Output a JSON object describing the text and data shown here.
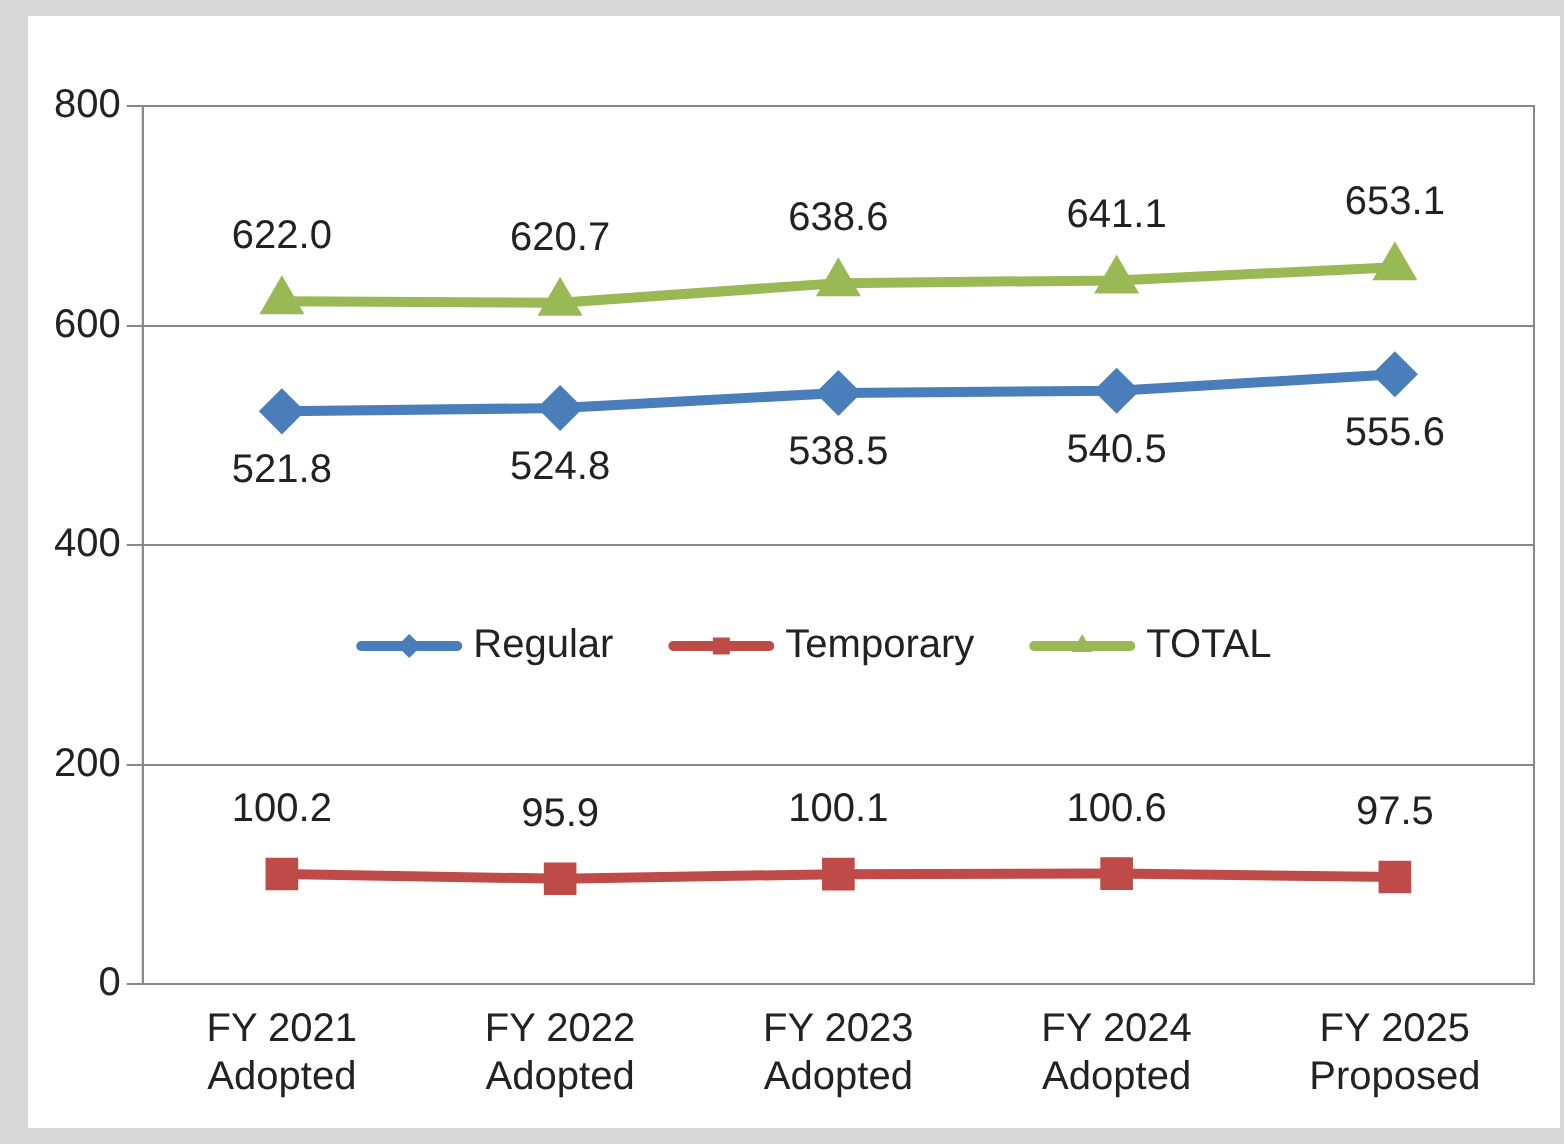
{
  "chart_data": {
    "type": "line",
    "categories": [
      "FY 2021\nAdopted",
      "FY 2022\nAdopted",
      "FY 2023\nAdopted",
      "FY 2024\nAdopted",
      "FY 2025\nProposed"
    ],
    "series": [
      {
        "name": "Regular",
        "color": "#4a7ebb",
        "marker": "diamond",
        "values": [
          521.8,
          524.8,
          538.5,
          540.5,
          555.6
        ],
        "value_labels": [
          "521.8",
          "524.8",
          "538.5",
          "540.5",
          "555.6"
        ]
      },
      {
        "name": "Temporary",
        "color": "#be4b48",
        "marker": "square",
        "values": [
          100.2,
          95.9,
          100.1,
          100.6,
          97.5
        ],
        "value_labels": [
          "100.2",
          "95.9",
          "100.1",
          "100.6",
          "97.5"
        ]
      },
      {
        "name": "TOTAL",
        "color": "#98b954",
        "marker": "triangle",
        "values": [
          622.0,
          620.7,
          638.6,
          641.1,
          653.1
        ],
        "value_labels": [
          "622.0",
          "620.7",
          "638.6",
          "641.1",
          "653.1"
        ]
      }
    ],
    "ylim": [
      0,
      800
    ],
    "yticks": [
      0,
      200,
      400,
      600,
      800
    ],
    "grid": "y",
    "legend": "center"
  }
}
